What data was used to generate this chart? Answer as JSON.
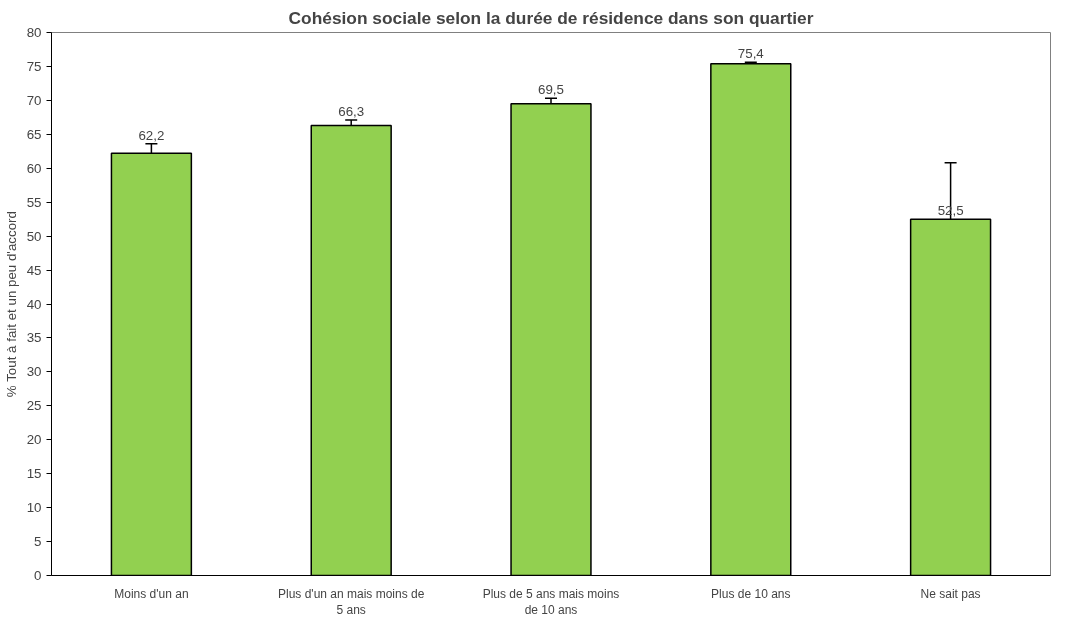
{
  "chart_data": {
    "type": "bar",
    "title": "Cohésion sociale selon la durée de résidence dans son quartier",
    "ylabel": "% Tout à fait et un peu d'accord",
    "categories": [
      "Moins d'un an",
      "Plus d'un an mais moins de 5 ans",
      "Plus de 5 ans mais moins de 10 ans",
      "Plus de 10 ans",
      "Ne sait pas"
    ],
    "values": [
      62.2,
      66.3,
      69.5,
      75.4,
      52.5
    ],
    "value_labels": [
      "62,2",
      "66,3",
      "69,5",
      "75,4",
      "52,5"
    ],
    "errors": [
      1.4,
      0.8,
      0.8,
      0.2,
      8.3
    ],
    "color": "#92d050",
    "ylim": [
      0,
      80
    ],
    "yticks": [
      0,
      5,
      10,
      15,
      20,
      25,
      30,
      35,
      40,
      45,
      50,
      55,
      60,
      65,
      70,
      75,
      80
    ],
    "grid": false
  }
}
